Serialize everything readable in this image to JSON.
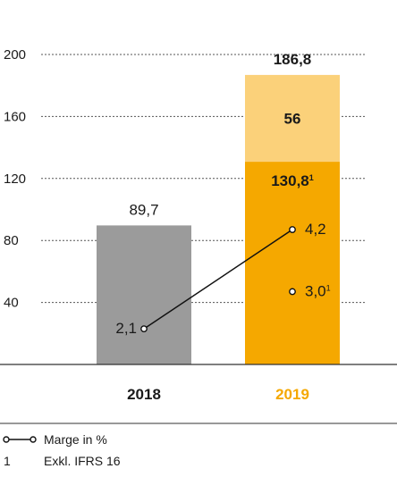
{
  "chart_data": {
    "type": "bar",
    "stacked": true,
    "categories": [
      "2018",
      "2019"
    ],
    "ylim": [
      0,
      200
    ],
    "yticks": [
      40,
      80,
      120,
      160,
      200
    ],
    "grid": true,
    "bars": [
      {
        "category": "2018",
        "segments": [
          {
            "value": 89.7,
            "color": "#9b9b9b"
          }
        ],
        "total_label": "89,7",
        "total_color": "#1a1a1a",
        "category_color": "#1a1a1a"
      },
      {
        "category": "2019",
        "segments": [
          {
            "value": 130.8,
            "label": "130,8",
            "label_sup": "1",
            "color": "#f5a800"
          },
          {
            "value": 56,
            "label": "56",
            "color": "#fbd17a"
          }
        ],
        "total_label": "186,8",
        "total_color": "#f5a800",
        "category_color": "#f5a800"
      }
    ],
    "margin_line": {
      "name": "Marge in %",
      "points": [
        {
          "category": "2018",
          "value": 2.1,
          "label": "2,1",
          "y_pos": 23
        },
        {
          "category": "2019",
          "value": 4.2,
          "label": "4,2",
          "y_pos": 87
        }
      ],
      "extra_point": {
        "category": "2019",
        "value": 3.0,
        "label": "3,0",
        "label_sup": "1",
        "y_pos": 47
      }
    },
    "legend": [
      {
        "marker": "line-circle",
        "label": "Marge in %"
      },
      {
        "marker": "text",
        "symbol": "1",
        "label": "Exkl. IFRS 16"
      }
    ]
  }
}
